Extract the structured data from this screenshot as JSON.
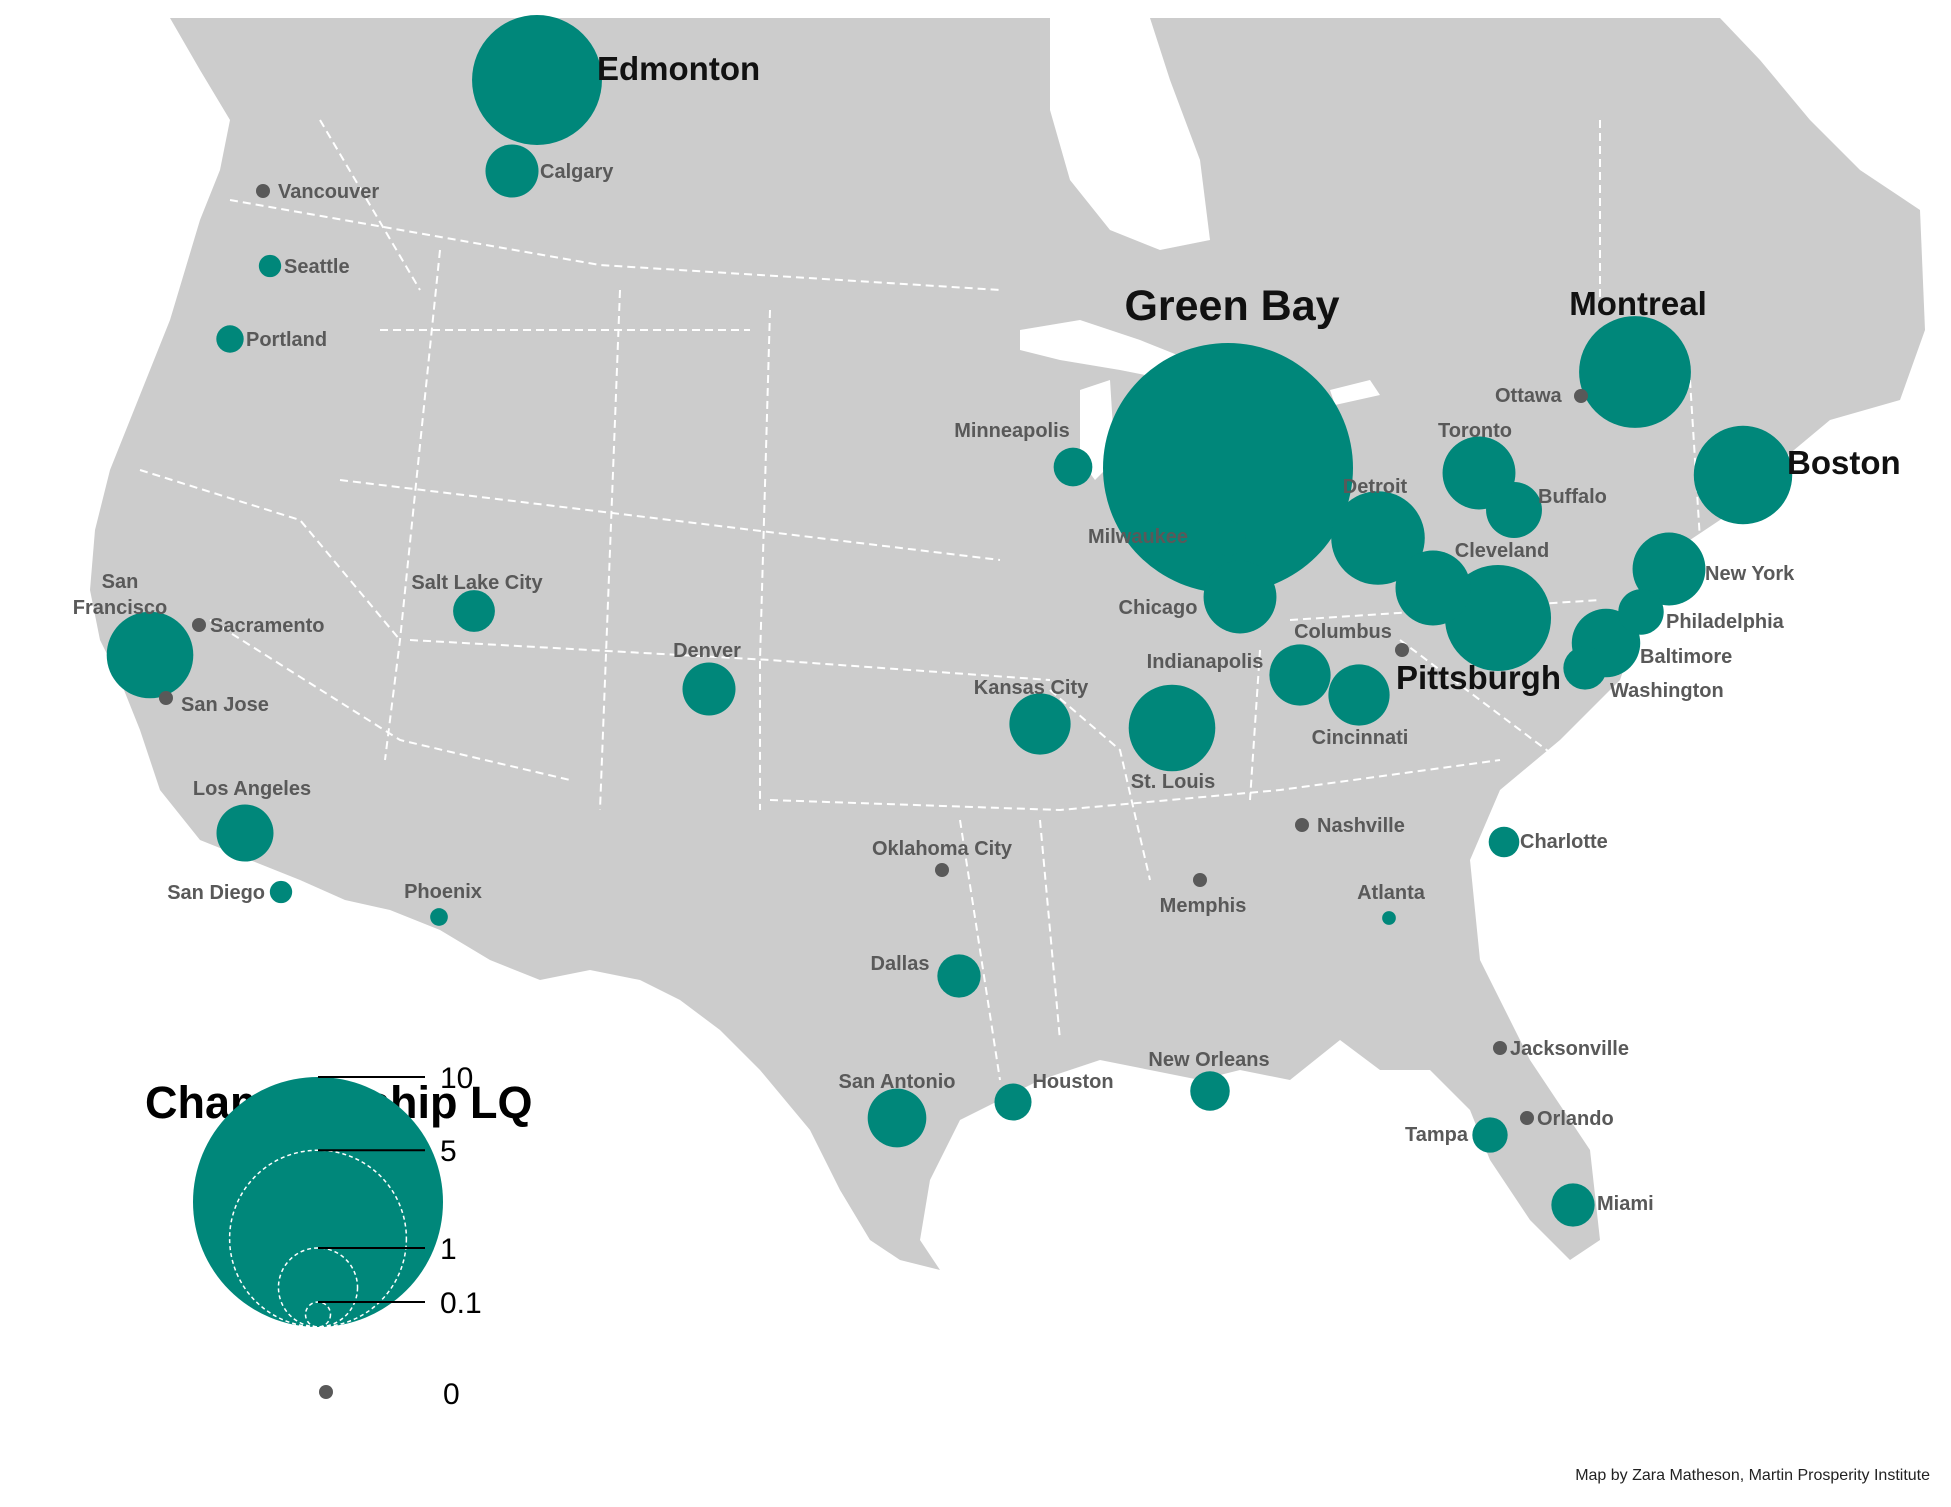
{
  "map": {
    "type": "proportional-symbol",
    "region": "North America (USA and Canada)",
    "land_color": "#cccccc",
    "water_color": "#ffffff",
    "border_color": "#ffffff",
    "symbol_color": "#00877a",
    "zero_color": "#595959"
  },
  "legend": {
    "title": "Championship LQ",
    "ticks": [
      {
        "label": "10",
        "value": 10
      },
      {
        "label": "5",
        "value": 5
      },
      {
        "label": "1",
        "value": 1
      },
      {
        "label": "0.1",
        "value": 0.1
      }
    ],
    "zero": {
      "label": "0",
      "value": 0
    }
  },
  "credit": "Map by Zara Matheson, Martin Prosperity Institute",
  "cities": [
    {
      "name": "Green Bay",
      "lq": 10,
      "emphasis": "huge"
    },
    {
      "name": "Edmonton",
      "lq": 2.7,
      "emphasis": "big"
    },
    {
      "name": "Montreal",
      "lq": 2.0,
      "emphasis": "big"
    },
    {
      "name": "Boston",
      "lq": 1.55,
      "emphasis": "big"
    },
    {
      "name": "Pittsburgh",
      "lq": 1.8,
      "emphasis": "big"
    },
    {
      "name": "Calgary",
      "lq": 0.45
    },
    {
      "name": "Vancouver",
      "lq": 0
    },
    {
      "name": "Seattle",
      "lq": 0.08
    },
    {
      "name": "Portland",
      "lq": 0.12
    },
    {
      "name": "San Francisco",
      "lq": 1.2
    },
    {
      "name": "Sacramento",
      "lq": 0
    },
    {
      "name": "San Jose",
      "lq": 0
    },
    {
      "name": "Los Angeles",
      "lq": 0.52
    },
    {
      "name": "San Diego",
      "lq": 0.08
    },
    {
      "name": "Phoenix",
      "lq": 0.05
    },
    {
      "name": "Salt Lake City",
      "lq": 0.28
    },
    {
      "name": "Denver",
      "lq": 0.45
    },
    {
      "name": "Minneapolis",
      "lq": 0.24
    },
    {
      "name": "Milwaukee",
      "lq": 0.2
    },
    {
      "name": "Chicago",
      "lq": 0.85
    },
    {
      "name": "Kansas City",
      "lq": 0.6
    },
    {
      "name": "St. Louis",
      "lq": 1.2
    },
    {
      "name": "Indianapolis",
      "lq": 0.6
    },
    {
      "name": "Cincinnati",
      "lq": 0.6
    },
    {
      "name": "Columbus",
      "lq": 0
    },
    {
      "name": "Detroit",
      "lq": 1.4
    },
    {
      "name": "Cleveland",
      "lq": 0.9
    },
    {
      "name": "Toronto",
      "lq": 0.85
    },
    {
      "name": "Buffalo",
      "lq": 0.5
    },
    {
      "name": "Ottawa",
      "lq": 0
    },
    {
      "name": "New York",
      "lq": 0.85
    },
    {
      "name": "Philadelphia",
      "lq": 0.33
    },
    {
      "name": "Baltimore",
      "lq": 0.75
    },
    {
      "name": "Washington",
      "lq": 0.3
    },
    {
      "name": "Nashville",
      "lq": 0
    },
    {
      "name": "Charlotte",
      "lq": 0.15
    },
    {
      "name": "Oklahoma City",
      "lq": 0
    },
    {
      "name": "Memphis",
      "lq": 0
    },
    {
      "name": "Atlanta",
      "lq": 0.03
    },
    {
      "name": "Dallas",
      "lq": 0.3
    },
    {
      "name": "Houston",
      "lq": 0.22
    },
    {
      "name": "San Antonio",
      "lq": 0.55
    },
    {
      "name": "New Orleans",
      "lq": 0.25
    },
    {
      "name": "Jacksonville",
      "lq": 0
    },
    {
      "name": "Orlando",
      "lq": 0
    },
    {
      "name": "Tampa",
      "lq": 0.2
    },
    {
      "name": "Miami",
      "lq": 0.3
    }
  ]
}
